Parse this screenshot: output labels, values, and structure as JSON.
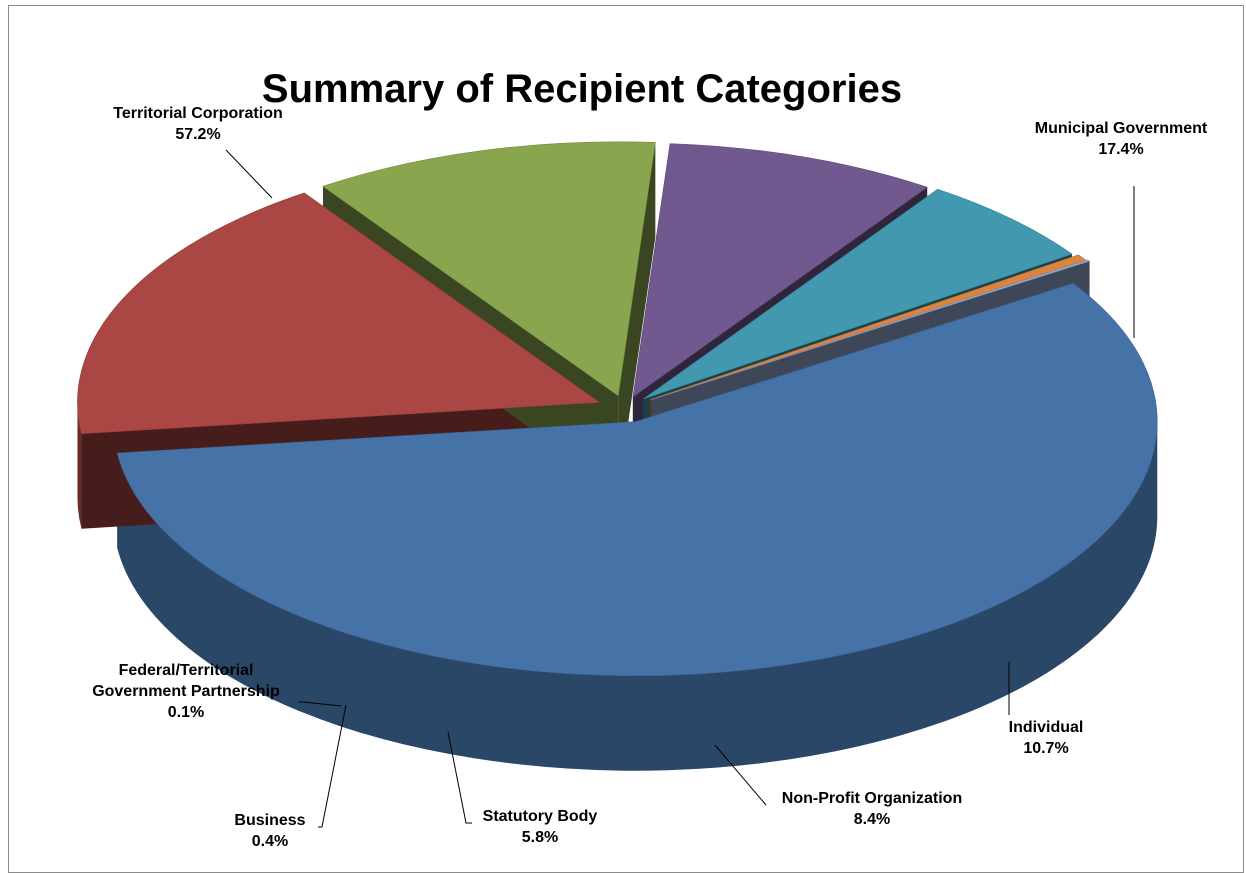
{
  "chart_data": {
    "type": "pie",
    "title": "Summary of Recipient Categories",
    "legend": "none",
    "slices": [
      {
        "name": "Territorial Corporation",
        "label": "57.2%",
        "value": 57.2,
        "color": "#4572a7"
      },
      {
        "name": "Municipal Government",
        "label": "17.4%",
        "value": 17.4,
        "color": "#aa4643"
      },
      {
        "name": "Individual",
        "label": "10.7%",
        "value": 10.7,
        "color": "#89a54e"
      },
      {
        "name": "Non-Profit Organization",
        "label": "8.4%",
        "value": 8.4,
        "color": "#71588f"
      },
      {
        "name": "Statutory Body",
        "label": "5.8%",
        "value": 5.8,
        "color": "#4198af"
      },
      {
        "name": "Business",
        "label": "0.4%",
        "value": 0.4,
        "color": "#db843d"
      },
      {
        "name": "Federal/Territorial Government Partnership",
        "label": "0.1%",
        "value": 0.1,
        "color": "#93a9cf"
      }
    ]
  }
}
